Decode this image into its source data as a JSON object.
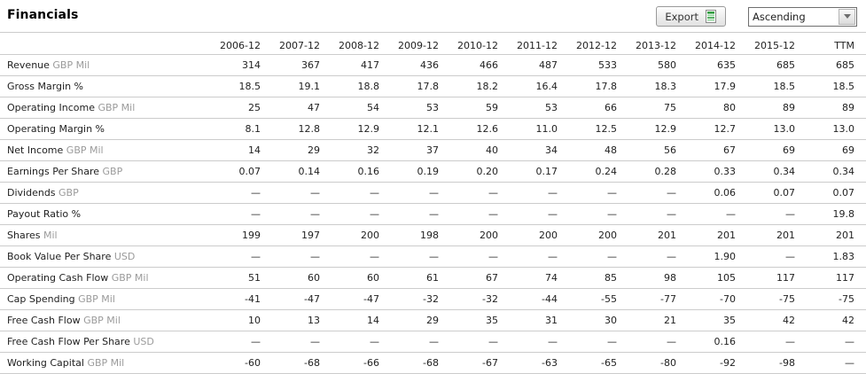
{
  "page": {
    "title": "Financials"
  },
  "toolbar": {
    "export_label": "Export",
    "export_icon": "spreadsheet-icon",
    "sort_value": "Ascending",
    "sort_icon": "dropdown-arrow-icon"
  },
  "colors": {
    "export_icon_green": "#2f9c3f",
    "table_border": "#cccccc",
    "unit_text": "#9b9b9b",
    "button_border": "#9a9a9a",
    "select_border": "#6f6f6f"
  },
  "table": {
    "columns": [
      "2006-12",
      "2007-12",
      "2008-12",
      "2009-12",
      "2010-12",
      "2011-12",
      "2012-12",
      "2013-12",
      "2014-12",
      "2015-12",
      "TTM"
    ],
    "rows": [
      {
        "label": "Revenue",
        "unit": "GBP Mil",
        "values": [
          "314",
          "367",
          "417",
          "436",
          "466",
          "487",
          "533",
          "580",
          "635",
          "685",
          "685"
        ]
      },
      {
        "label": "Gross Margin %",
        "unit": "",
        "values": [
          "18.5",
          "19.1",
          "18.8",
          "17.8",
          "18.2",
          "16.4",
          "17.8",
          "18.3",
          "17.9",
          "18.5",
          "18.5"
        ]
      },
      {
        "label": "Operating Income",
        "unit": "GBP Mil",
        "values": [
          "25",
          "47",
          "54",
          "53",
          "59",
          "53",
          "66",
          "75",
          "80",
          "89",
          "89"
        ]
      },
      {
        "label": "Operating Margin %",
        "unit": "",
        "values": [
          "8.1",
          "12.8",
          "12.9",
          "12.1",
          "12.6",
          "11.0",
          "12.5",
          "12.9",
          "12.7",
          "13.0",
          "13.0"
        ]
      },
      {
        "label": "Net Income",
        "unit": "GBP Mil",
        "values": [
          "14",
          "29",
          "32",
          "37",
          "40",
          "34",
          "48",
          "56",
          "67",
          "69",
          "69"
        ]
      },
      {
        "label": "Earnings Per Share",
        "unit": "GBP",
        "values": [
          "0.07",
          "0.14",
          "0.16",
          "0.19",
          "0.20",
          "0.17",
          "0.24",
          "0.28",
          "0.33",
          "0.34",
          "0.34"
        ]
      },
      {
        "label": "Dividends",
        "unit": "GBP",
        "values": [
          "—",
          "—",
          "—",
          "—",
          "—",
          "—",
          "—",
          "—",
          "0.06",
          "0.07",
          "0.07"
        ]
      },
      {
        "label": "Payout Ratio %",
        "unit": "",
        "values": [
          "—",
          "—",
          "—",
          "—",
          "—",
          "—",
          "—",
          "—",
          "—",
          "—",
          "19.8"
        ]
      },
      {
        "label": "Shares",
        "unit": "Mil",
        "values": [
          "199",
          "197",
          "200",
          "198",
          "200",
          "200",
          "200",
          "201",
          "201",
          "201",
          "201"
        ]
      },
      {
        "label": "Book Value Per Share",
        "unit": "USD",
        "values": [
          "—",
          "—",
          "—",
          "—",
          "—",
          "—",
          "—",
          "—",
          "1.90",
          "—",
          "1.83"
        ]
      },
      {
        "label": "Operating Cash Flow",
        "unit": "GBP Mil",
        "values": [
          "51",
          "60",
          "60",
          "61",
          "67",
          "74",
          "85",
          "98",
          "105",
          "117",
          "117"
        ]
      },
      {
        "label": "Cap Spending",
        "unit": "GBP Mil",
        "values": [
          "-41",
          "-47",
          "-47",
          "-32",
          "-32",
          "-44",
          "-55",
          "-77",
          "-70",
          "-75",
          "-75"
        ]
      },
      {
        "label": "Free Cash Flow",
        "unit": "GBP Mil",
        "values": [
          "10",
          "13",
          "14",
          "29",
          "35",
          "31",
          "30",
          "21",
          "35",
          "42",
          "42"
        ]
      },
      {
        "label": "Free Cash Flow Per Share",
        "unit": "USD",
        "values": [
          "—",
          "—",
          "—",
          "—",
          "—",
          "—",
          "—",
          "—",
          "0.16",
          "—",
          "—"
        ]
      },
      {
        "label": "Working Capital",
        "unit": "GBP Mil",
        "values": [
          "-60",
          "-68",
          "-66",
          "-68",
          "-67",
          "-63",
          "-65",
          "-80",
          "-92",
          "-98",
          "—"
        ]
      }
    ]
  }
}
